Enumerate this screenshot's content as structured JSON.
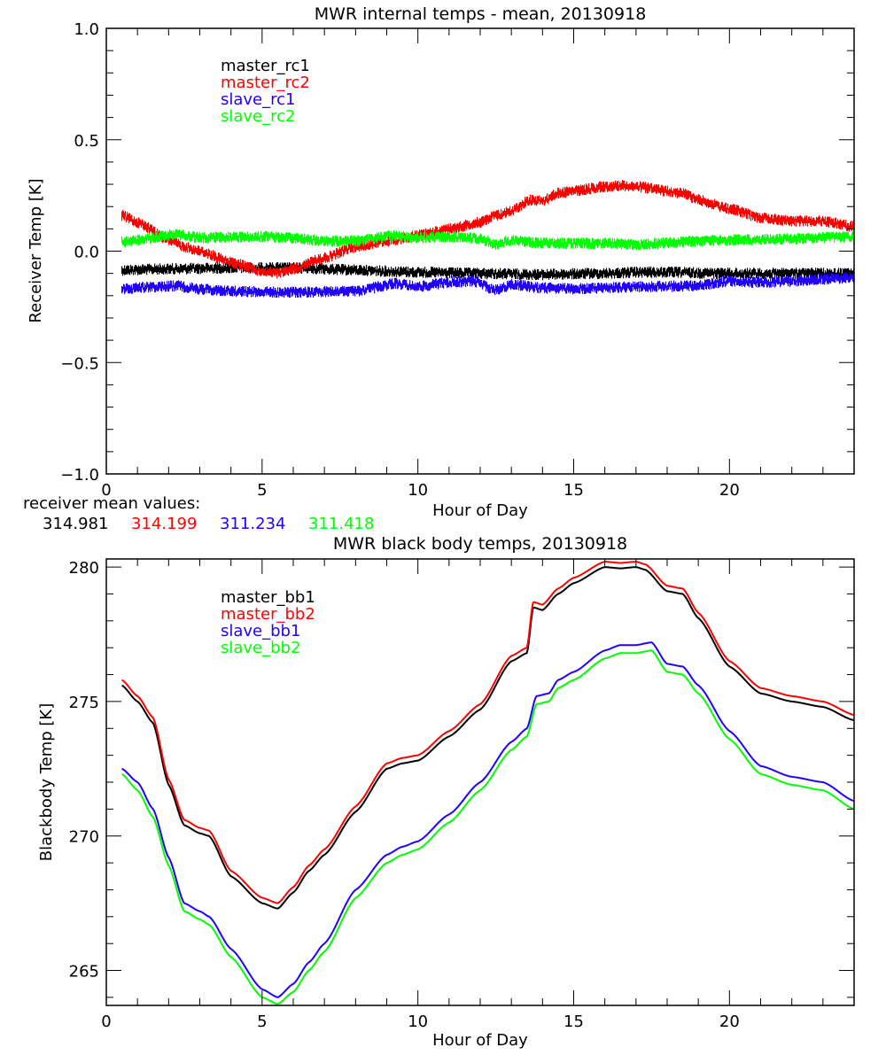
{
  "chart_data": [
    {
      "type": "line",
      "title": "MWR internal temps - mean, 20130918",
      "xlabel": "Hour of Day",
      "ylabel": "Receiver Temp [K]",
      "xlim": [
        0,
        24
      ],
      "ylim": [
        -1.0,
        1.0
      ],
      "xticks": [
        0,
        5,
        10,
        15,
        20
      ],
      "xtick_labels": [
        "0",
        "5",
        "10",
        "15",
        "20"
      ],
      "x_minor_step": 1,
      "yticks": [
        -1.0,
        -0.5,
        0.0,
        0.5,
        1.0
      ],
      "ytick_labels": [
        "-1.0",
        "-0.5",
        "0.0",
        "0.5",
        "1.0"
      ],
      "y_minor_step": 0.1,
      "grid": false,
      "legend_position": "top-left",
      "series": [
        {
          "name": "master_rc1",
          "color": "#000000",
          "noisy": true,
          "x": [
            0.5,
            2,
            4,
            6,
            8,
            9,
            10,
            12,
            14,
            16,
            17,
            18,
            20,
            22,
            24
          ],
          "y": [
            -0.085,
            -0.08,
            -0.075,
            -0.075,
            -0.085,
            -0.09,
            -0.095,
            -0.1,
            -0.105,
            -0.1,
            -0.095,
            -0.095,
            -0.1,
            -0.1,
            -0.1
          ]
        },
        {
          "name": "master_rc2",
          "color": "#ff0000",
          "noisy": true,
          "x": [
            0.5,
            1,
            2,
            2.5,
            3,
            4,
            5,
            5.5,
            6,
            7,
            8,
            9,
            10,
            11,
            12,
            12.5,
            13,
            13.6,
            14,
            14.5,
            15,
            16,
            16.5,
            17,
            18,
            18.5,
            19,
            20,
            21,
            22,
            23,
            24
          ],
          "y": [
            0.16,
            0.13,
            0.05,
            0.02,
            0.0,
            -0.05,
            -0.09,
            -0.1,
            -0.08,
            -0.03,
            0.02,
            0.045,
            0.07,
            0.1,
            0.13,
            0.16,
            0.18,
            0.23,
            0.225,
            0.26,
            0.27,
            0.29,
            0.295,
            0.29,
            0.27,
            0.26,
            0.23,
            0.19,
            0.15,
            0.135,
            0.135,
            0.11
          ]
        },
        {
          "name": "slave_rc1",
          "color": "#2200ff",
          "noisy": true,
          "x": [
            0.5,
            1.5,
            2.2,
            3,
            4,
            6,
            8,
            9.3,
            10,
            11,
            11.8,
            12.5,
            13,
            14,
            15,
            16,
            17,
            19,
            20,
            21,
            22,
            23,
            24
          ],
          "y": [
            -0.17,
            -0.16,
            -0.155,
            -0.17,
            -0.18,
            -0.185,
            -0.18,
            -0.145,
            -0.16,
            -0.14,
            -0.135,
            -0.175,
            -0.15,
            -0.165,
            -0.17,
            -0.165,
            -0.16,
            -0.155,
            -0.135,
            -0.14,
            -0.135,
            -0.125,
            -0.12
          ]
        },
        {
          "name": "slave_rc2",
          "color": "#00ff00",
          "noisy": true,
          "x": [
            0.5,
            1,
            2.2,
            3,
            5,
            6,
            7,
            8,
            9.3,
            10,
            11.5,
            12,
            12.5,
            13,
            14,
            16,
            17,
            19,
            20,
            22,
            24
          ],
          "y": [
            0.04,
            0.05,
            0.075,
            0.06,
            0.065,
            0.06,
            0.045,
            0.045,
            0.07,
            0.06,
            0.065,
            0.055,
            0.03,
            0.05,
            0.035,
            0.035,
            0.03,
            0.045,
            0.05,
            0.055,
            0.065
          ]
        }
      ],
      "annotation": {
        "label": "receiver mean values:",
        "values": [
          {
            "text": "314.981",
            "color": "#000000"
          },
          {
            "text": "314.199",
            "color": "#ff0000"
          },
          {
            "text": "311.234",
            "color": "#2200ff"
          },
          {
            "text": "311.418",
            "color": "#00ff00"
          }
        ]
      }
    },
    {
      "type": "line",
      "title": "MWR black body temps, 20130918",
      "xlabel": "Hour of Day",
      "ylabel": "Blackbody Temp [K]",
      "xlim": [
        0,
        24
      ],
      "ylim": [
        263.7,
        280.3
      ],
      "xticks": [
        0,
        5,
        10,
        15,
        20
      ],
      "xtick_labels": [
        "0",
        "5",
        "10",
        "15",
        "20"
      ],
      "x_minor_step": 1,
      "yticks": [
        265,
        270,
        275,
        280
      ],
      "ytick_labels": [
        "265",
        "270",
        "275",
        "280"
      ],
      "y_minor_step": 1,
      "grid": false,
      "legend_position": "top-left",
      "series": [
        {
          "name": "master_bb1",
          "color": "#000000",
          "x": [
            0.5,
            1,
            1.5,
            2,
            2.5,
            3,
            3.3,
            4,
            5,
            5.5,
            6,
            6.5,
            7,
            8,
            9,
            9.5,
            10,
            11,
            12,
            13,
            13.5,
            13.7,
            14,
            14.5,
            15,
            16,
            16.5,
            17,
            17.3,
            18,
            18.5,
            19,
            20,
            21,
            22,
            23,
            24
          ],
          "y": [
            275.6,
            275.0,
            274.2,
            271.9,
            270.4,
            270.1,
            270.0,
            268.5,
            267.5,
            267.3,
            267.9,
            268.7,
            269.3,
            270.9,
            272.5,
            272.7,
            272.8,
            273.7,
            274.7,
            276.5,
            276.8,
            278.5,
            278.4,
            279.0,
            279.4,
            280.0,
            279.95,
            280.0,
            279.9,
            279.1,
            279.0,
            278.1,
            276.3,
            275.3,
            275.0,
            274.8,
            274.3
          ]
        },
        {
          "name": "master_bb2",
          "color": "#ff0000",
          "x": [
            0.5,
            1,
            1.5,
            2,
            2.5,
            3,
            3.3,
            4,
            5,
            5.5,
            6,
            6.5,
            7,
            8,
            9,
            9.5,
            10,
            11,
            12,
            13,
            13.5,
            13.7,
            14,
            14.5,
            15,
            16,
            16.5,
            17,
            17.3,
            18,
            18.5,
            19,
            20,
            21,
            22,
            23,
            24
          ],
          "y": [
            275.8,
            275.2,
            274.4,
            272.1,
            270.6,
            270.3,
            270.2,
            268.7,
            267.7,
            267.5,
            268.1,
            268.9,
            269.5,
            271.1,
            272.7,
            272.9,
            273.0,
            273.9,
            274.9,
            276.7,
            277.0,
            278.7,
            278.6,
            279.2,
            279.6,
            280.2,
            280.15,
            280.2,
            280.1,
            279.3,
            279.2,
            278.3,
            276.5,
            275.5,
            275.2,
            275.0,
            274.5
          ]
        },
        {
          "name": "slave_bb1",
          "color": "#2200ff",
          "x": [
            0.5,
            1,
            1.5,
            2,
            2.5,
            3,
            3.3,
            4,
            5,
            5.5,
            6,
            6.5,
            7,
            8,
            9,
            9.5,
            10,
            11,
            12,
            13,
            13.5,
            13.8,
            14.2,
            14.5,
            15,
            16,
            16.5,
            17,
            17.5,
            18,
            18.5,
            19,
            20,
            21,
            22,
            23,
            24
          ],
          "y": [
            272.5,
            272.0,
            271.0,
            269.2,
            267.5,
            267.2,
            267.0,
            265.8,
            264.3,
            264.0,
            264.5,
            265.3,
            266.0,
            268.0,
            269.3,
            269.6,
            269.8,
            270.8,
            272.0,
            273.5,
            274.0,
            275.2,
            275.3,
            275.8,
            276.1,
            276.9,
            277.1,
            277.1,
            277.2,
            276.4,
            276.3,
            275.6,
            273.9,
            272.6,
            272.2,
            272.0,
            271.3
          ]
        },
        {
          "name": "slave_bb2",
          "color": "#00ff00",
          "x": [
            0.5,
            1,
            1.5,
            2,
            2.5,
            3,
            3.3,
            4,
            5,
            5.5,
            6,
            6.5,
            7,
            8,
            9,
            9.5,
            10,
            11,
            12,
            13,
            13.5,
            13.8,
            14.2,
            14.5,
            15,
            16,
            16.5,
            17,
            17.5,
            18,
            18.5,
            19,
            20,
            21,
            22,
            23,
            24
          ],
          "y": [
            272.3,
            271.7,
            270.7,
            268.9,
            267.2,
            266.9,
            266.7,
            265.5,
            264.0,
            263.75,
            264.2,
            265.0,
            265.7,
            267.7,
            269.0,
            269.3,
            269.5,
            270.5,
            271.7,
            273.2,
            273.7,
            274.9,
            275.0,
            275.5,
            275.8,
            276.6,
            276.8,
            276.8,
            276.9,
            276.1,
            276.0,
            275.3,
            273.6,
            272.3,
            271.9,
            271.7,
            271.0
          ]
        }
      ]
    }
  ]
}
